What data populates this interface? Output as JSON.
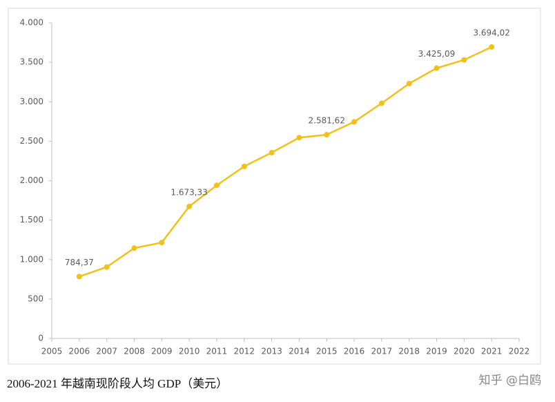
{
  "chart_data": {
    "type": "line",
    "x": [
      2006,
      2007,
      2008,
      2009,
      2010,
      2011,
      2012,
      2013,
      2014,
      2015,
      2016,
      2017,
      2018,
      2019,
      2020,
      2021
    ],
    "series": [
      {
        "color": "#f2c019",
        "values": [
          784.37,
          905,
          1145,
          1215,
          1673.33,
          1940,
          2180,
          2355,
          2545,
          2581.62,
          2745,
          2980,
          3230,
          3425.09,
          3530,
          3694.02
        ],
        "value_labels": [
          "784,37",
          null,
          null,
          null,
          "1.673,33",
          null,
          null,
          null,
          null,
          "2.581,62",
          null,
          null,
          null,
          "3.425,09",
          null,
          "3.694,02"
        ]
      }
    ],
    "xlim": [
      2005,
      2022
    ],
    "xticks": [
      2005,
      2006,
      2007,
      2008,
      2009,
      2010,
      2011,
      2012,
      2013,
      2014,
      2015,
      2016,
      2017,
      2018,
      2019,
      2020,
      2021,
      2022
    ],
    "ylim": [
      0,
      4000
    ],
    "yticks": [
      0,
      500,
      {
        "value": 1000,
        "label": "1.000"
      },
      {
        "value": 1500,
        "label": "1.500"
      },
      {
        "value": 2000,
        "label": "2.000"
      },
      {
        "value": 2500,
        "label": "2.500"
      },
      {
        "value": 3000,
        "label": "3.000"
      },
      {
        "value": 3500,
        "label": "3.500"
      },
      {
        "value": 4000,
        "label": "4.000"
      }
    ],
    "grid": false
  },
  "caption": "2006-2021 年越南现阶段人均 GDP（美元）",
  "watermark": "知乎 @白鸥"
}
